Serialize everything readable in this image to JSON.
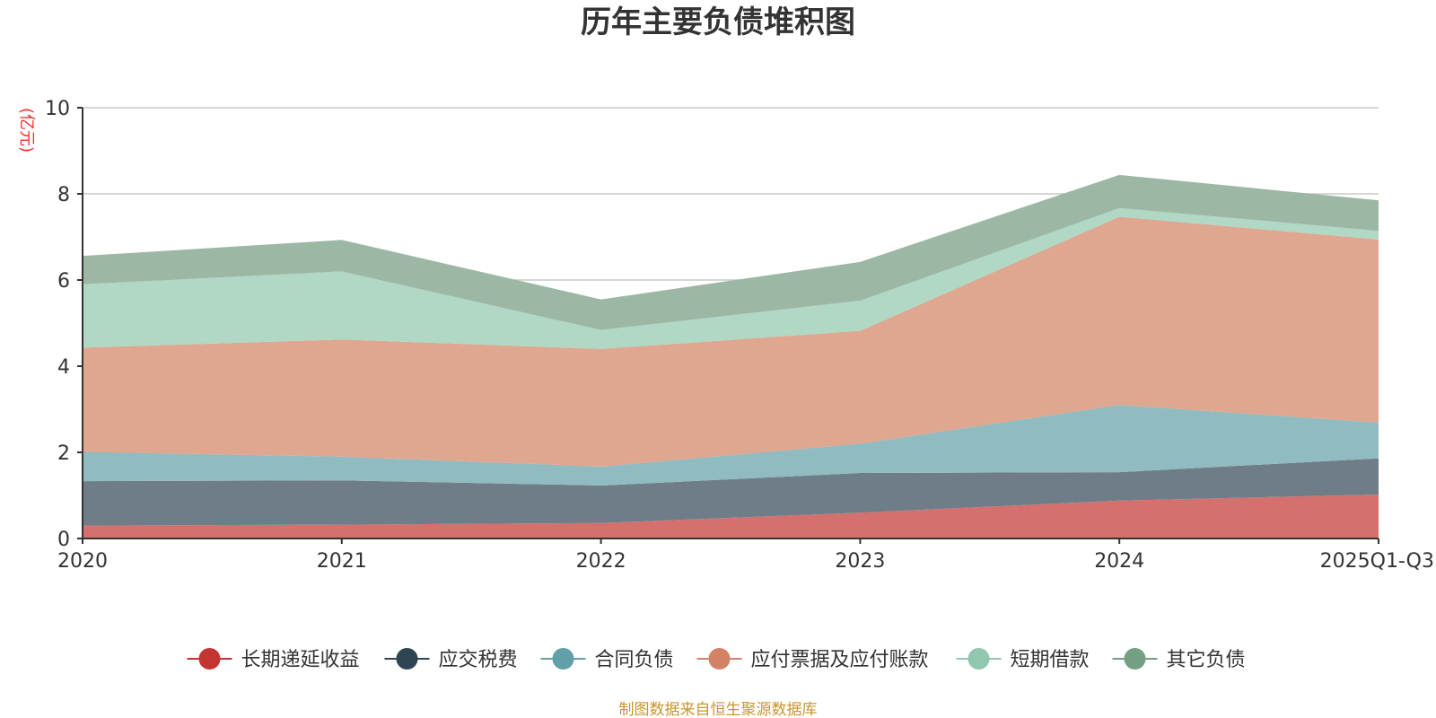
{
  "chart_data": {
    "type": "area",
    "stacked": true,
    "title": "历年主要负债堆积图",
    "ylabel": "(亿元)",
    "xlabel": "",
    "ylim": [
      0,
      10
    ],
    "yticks": [
      0,
      2,
      4,
      6,
      8,
      10
    ],
    "categories": [
      "2020",
      "2021",
      "2022",
      "2023",
      "2024",
      "2025Q1-Q3"
    ],
    "grid": true,
    "legend_position": "bottom",
    "series": [
      {
        "name": "长期递延收益",
        "color": "#c23531",
        "fill": "#d4706d",
        "values": [
          0.3,
          0.32,
          0.36,
          0.6,
          0.88,
          1.02
        ]
      },
      {
        "name": "应交税费",
        "color": "#2f4554",
        "fill": "#6f7d89",
        "values": [
          1.03,
          1.03,
          0.87,
          0.92,
          0.66,
          0.84
        ]
      },
      {
        "name": "合同负债",
        "color": "#61a0a8",
        "fill": "#90bbc0",
        "values": [
          0.68,
          0.55,
          0.44,
          0.68,
          1.56,
          0.83
        ]
      },
      {
        "name": "应付票据及应付账款",
        "color": "#d48265",
        "fill": "#dfa690",
        "values": [
          2.42,
          2.72,
          2.73,
          2.62,
          4.37,
          4.25
        ]
      },
      {
        "name": "短期借款",
        "color": "#91c7ae",
        "fill": "#b1d7c5",
        "values": [
          1.47,
          1.58,
          0.44,
          0.7,
          0.2,
          0.2
        ]
      },
      {
        "name": "其它负债",
        "color": "#749f83",
        "fill": "#9cb8a5",
        "values": [
          0.66,
          0.73,
          0.71,
          0.9,
          0.77,
          0.71
        ]
      }
    ]
  },
  "source_note": "制图数据来自恒生聚源数据库"
}
